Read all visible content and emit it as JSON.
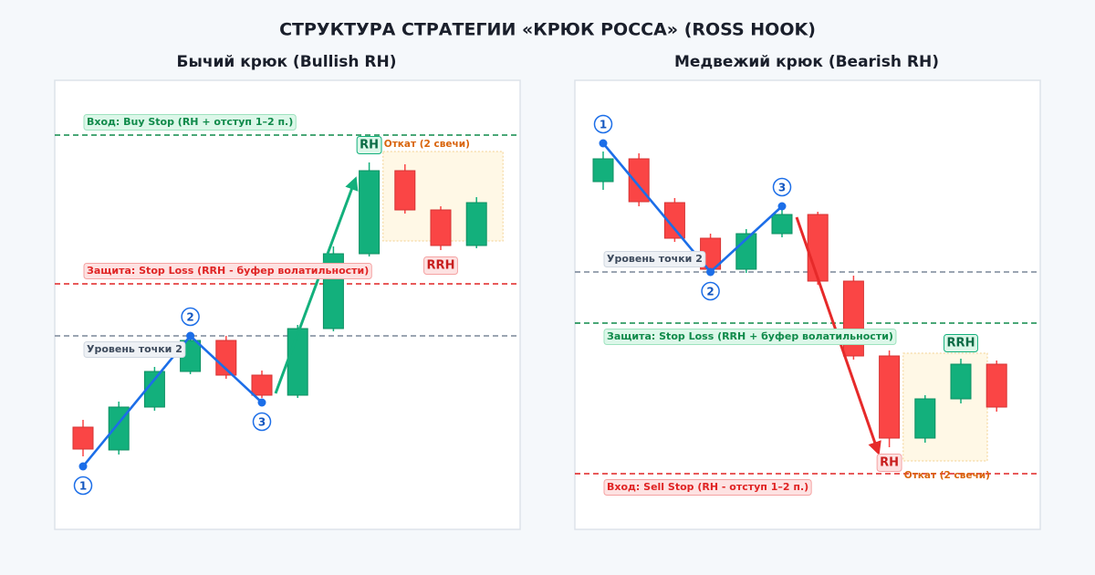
{
  "title": "СТРУКТУРА СТРАТЕГИИ «КРЮК РОССА» (ROSS HOOK)",
  "chart_data": [
    {
      "type": "candlestick",
      "title": "Бычий крюк (Bullish RH)",
      "ylim": [
        0,
        49.2
      ],
      "up_color": "#13b07c",
      "down_color": "#fa4545",
      "open": [
        11.2,
        8.7,
        13.4,
        17.3,
        20.7,
        16.9,
        14.7,
        22,
        30.2,
        39.3,
        35,
        31.1
      ],
      "high": [
        12,
        14,
        17.8,
        21.4,
        21.2,
        17.4,
        22.4,
        31,
        40.2,
        40,
        35.4,
        36.4
      ],
      "low": [
        8,
        8.2,
        13,
        17,
        16.5,
        14.4,
        14.4,
        21.7,
        29.9,
        34.6,
        30.6,
        30.8
      ],
      "close": [
        8.8,
        13.4,
        17.3,
        20.7,
        16.9,
        14.7,
        22,
        30.2,
        39.3,
        35,
        31.1,
        35.8
      ],
      "levels": [
        {
          "name": "Вход: Buy Stop (RH + отступ 1–2 п.)",
          "value": 43.2,
          "color": "#0f8a4a"
        },
        {
          "name": "Защита: Stop Loss (RRH - буфер волатильности)",
          "value": 26.9,
          "color": "#e02424"
        },
        {
          "name": "Уровень точки 2",
          "value": 21.2,
          "color": "#7a8799"
        }
      ],
      "points": {
        "labels": [
          "1",
          "2",
          "3"
        ],
        "x": [
          0,
          3,
          5
        ],
        "values": [
          6.9,
          21.2,
          13.9
        ],
        "color": "#1c6ee8"
      },
      "annotations": {
        "rh": "RH",
        "rrh": "RRH",
        "pullback": "Откат (2 свечи)"
      }
    },
    {
      "type": "candlestick",
      "title": "Медвежий крюк (Bearish RH)",
      "ylim": [
        0,
        49.2
      ],
      "up_color": "#13b07c",
      "down_color": "#fa4545",
      "open": [
        38.1,
        40.6,
        35.8,
        31.9,
        28.5,
        32.4,
        34.5,
        27.2,
        19,
        10,
        14.3,
        18.1
      ],
      "high": [
        41.4,
        41.2,
        36.3,
        32.4,
        32.9,
        35.1,
        34.8,
        27.8,
        19.6,
        14.7,
        18.7,
        18.5
      ],
      "low": [
        37.2,
        35.4,
        31.5,
        28,
        28.1,
        32,
        26.8,
        18.6,
        9,
        9.5,
        13.8,
        12.9
      ],
      "close": [
        40.6,
        35.9,
        31.9,
        28.5,
        32.4,
        34.5,
        27.2,
        19,
        10,
        14.3,
        18.1,
        13.4
      ],
      "levels": [
        {
          "name": "Уровень точки 2",
          "value": 28.2,
          "color": "#7a8799"
        },
        {
          "name": "Защита: Stop Loss (RRH + буфер волатильности)",
          "value": 22.6,
          "color": "#0f8a4a"
        },
        {
          "name": "Вход: Sell Stop (RH - отступ 1–2 п.)",
          "value": 6.1,
          "color": "#e02424"
        }
      ],
      "points": {
        "labels": [
          "1",
          "2",
          "3"
        ],
        "x": [
          0,
          3,
          5
        ],
        "values": [
          42.3,
          28.2,
          35.4
        ],
        "color": "#1c6ee8"
      },
      "annotations": {
        "rh": "RH",
        "rrh": "RRH",
        "pullback": "Откат (2 свечи)"
      }
    }
  ]
}
